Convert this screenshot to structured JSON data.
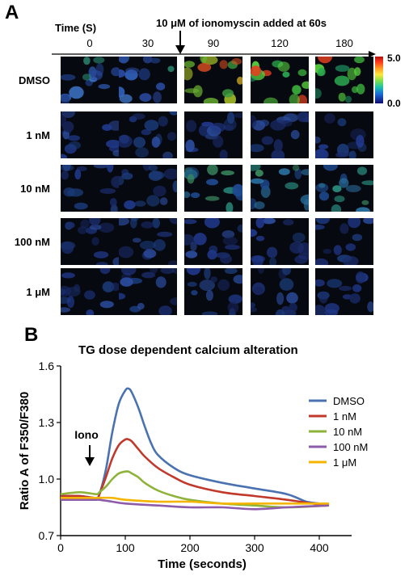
{
  "panel_a": {
    "letter": "A",
    "time_label": "Time (S)",
    "time_points": [
      "0",
      "30",
      "90",
      "120",
      "180"
    ],
    "annotation_prefix": "10 ",
    "annotation_unit": "μM",
    "annotation_suffix": " of ionomyscin added at 60s",
    "rows": [
      "DMSO",
      "1 nM",
      "10 nM",
      "100 nM",
      "1 μM"
    ],
    "colorbar_max": "5.0",
    "colorbar_min": "0.0"
  },
  "panel_b": {
    "letter": "B",
    "iono_label": "Iono"
  },
  "chart_data": {
    "type": "line",
    "title": "TG dose dependent calcium alteration",
    "xlabel": "Time (seconds)",
    "ylabel": "Ratio A of F350/F380",
    "xlim": [
      0,
      450
    ],
    "ylim": [
      0.7,
      1.6
    ],
    "xticks": [
      0,
      100,
      200,
      300,
      400
    ],
    "yticks": [
      0.7,
      1.0,
      1.3,
      1.6
    ],
    "ytick_labels": [
      "0.7",
      "1.0",
      "1.3",
      "1.6"
    ],
    "legend_position": "right",
    "annotation": {
      "text": "Iono",
      "x": 55
    },
    "series": [
      {
        "name": "DMSO",
        "color": "#4a72b0",
        "x": [
          0,
          30,
          55,
          60,
          70,
          80,
          90,
          100,
          105,
          110,
          120,
          130,
          140,
          150,
          175,
          200,
          250,
          300,
          350,
          380,
          400,
          415
        ],
        "y": [
          0.91,
          0.91,
          0.9,
          0.92,
          1.05,
          1.25,
          1.4,
          1.47,
          1.48,
          1.46,
          1.38,
          1.28,
          1.19,
          1.13,
          1.06,
          1.02,
          0.98,
          0.95,
          0.92,
          0.88,
          0.87,
          0.86
        ]
      },
      {
        "name": "1 nM",
        "color": "#c0392b",
        "x": [
          0,
          30,
          55,
          60,
          70,
          80,
          90,
          100,
          105,
          110,
          120,
          130,
          150,
          175,
          200,
          250,
          300,
          350,
          390,
          415
        ],
        "y": [
          0.91,
          0.91,
          0.9,
          0.92,
          1.01,
          1.11,
          1.18,
          1.21,
          1.21,
          1.2,
          1.16,
          1.12,
          1.06,
          1.01,
          0.97,
          0.93,
          0.91,
          0.89,
          0.87,
          0.86
        ]
      },
      {
        "name": "10 nM",
        "color": "#8db33a",
        "x": [
          0,
          30,
          55,
          60,
          70,
          80,
          90,
          100,
          105,
          110,
          120,
          130,
          150,
          175,
          200,
          250,
          300,
          350,
          415
        ],
        "y": [
          0.92,
          0.93,
          0.92,
          0.93,
          0.96,
          1.0,
          1.03,
          1.04,
          1.04,
          1.03,
          1.01,
          0.98,
          0.94,
          0.91,
          0.89,
          0.87,
          0.86,
          0.85,
          0.86
        ]
      },
      {
        "name": "100 nM",
        "color": "#8e5bab",
        "x": [
          0,
          30,
          55,
          60,
          80,
          100,
          150,
          200,
          250,
          300,
          350,
          415
        ],
        "y": [
          0.89,
          0.89,
          0.89,
          0.89,
          0.88,
          0.87,
          0.86,
          0.85,
          0.85,
          0.84,
          0.85,
          0.86
        ]
      },
      {
        "name": "1 μM",
        "color": "#f4b400",
        "x": [
          0,
          30,
          55,
          60,
          80,
          100,
          150,
          200,
          250,
          300,
          350,
          415
        ],
        "y": [
          0.9,
          0.9,
          0.9,
          0.9,
          0.9,
          0.89,
          0.88,
          0.88,
          0.87,
          0.87,
          0.87,
          0.87
        ]
      }
    ]
  }
}
